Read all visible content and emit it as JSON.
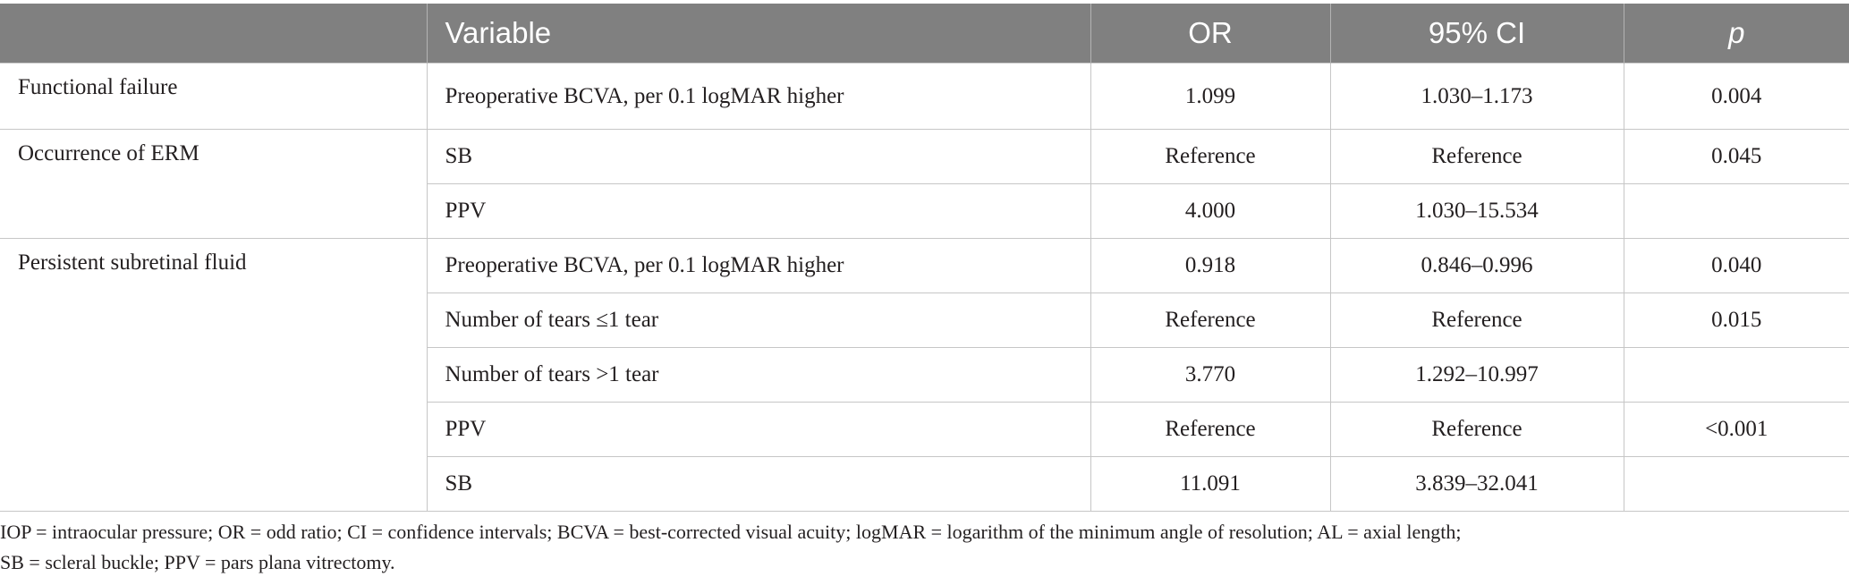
{
  "header": {
    "group": "",
    "variable": "Variable",
    "or": "OR",
    "ci": "95% CI",
    "p": "p"
  },
  "groups": [
    {
      "label": "Functional failure",
      "rows": [
        {
          "variable": "Preoperative BCVA, per 0.1 logMAR higher",
          "or": "1.099",
          "ci": "1.030–1.173",
          "p": "0.004"
        }
      ]
    },
    {
      "label": "Occurrence of ERM",
      "rows": [
        {
          "variable": "SB",
          "or": "Reference",
          "ci": "Reference",
          "p": "0.045"
        },
        {
          "variable": "PPV",
          "or": "4.000",
          "ci": "1.030–15.534",
          "p": ""
        }
      ]
    },
    {
      "label": "Persistent subretinal fluid",
      "rows": [
        {
          "variable": "Preoperative BCVA, per 0.1 logMAR higher",
          "or": "0.918",
          "ci": "0.846–0.996",
          "p": "0.040"
        },
        {
          "variable": "Number of tears ≤1 tear",
          "or": "Reference",
          "ci": "Reference",
          "p": "0.015"
        },
        {
          "variable": "Number of tears >1 tear",
          "or": "3.770",
          "ci": "1.292–10.997",
          "p": ""
        },
        {
          "variable": "PPV",
          "or": "Reference",
          "ci": "Reference",
          "p": "<0.001"
        },
        {
          "variable": "SB",
          "or": "11.091",
          "ci": "3.839–32.041",
          "p": ""
        }
      ]
    }
  ],
  "footnote": {
    "line1": "IOP = intraocular pressure; OR = odd ratio; CI = confidence intervals; BCVA = best-corrected visual acuity; logMAR = logarithm of the minimum angle of resolution; AL = axial length;",
    "line2": "SB = scleral buckle; PPV = pars plana vitrectomy."
  }
}
